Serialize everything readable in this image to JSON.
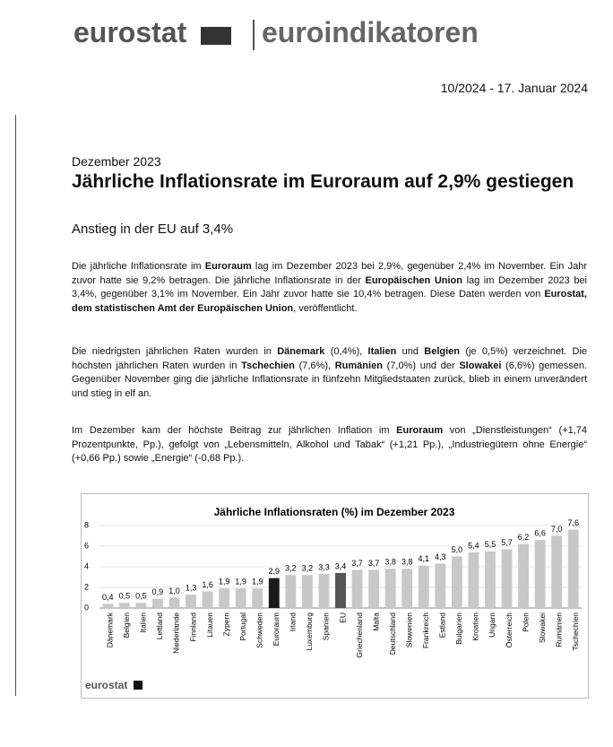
{
  "header": {
    "logo": "eurostat",
    "series": "euroindikatoren",
    "release": "10/2024 - 17. Januar 2024"
  },
  "article": {
    "kicker": "Dezember 2023",
    "title": "Jährliche Inflationsrate im Euroraum auf 2,9% gestiegen",
    "subtitle": "Anstieg in der EU auf 3,4%",
    "paragraphs": [
      {
        "runs": [
          "Die jährliche Inflationsrate im ",
          {
            "bold": "Euroraum"
          },
          " lag im Dezember 2023 bei 2,9%, gegenüber 2,4% im November. Ein Jahr zuvor hatte sie 9,2% betragen. Die jährliche Inflationsrate in der ",
          {
            "bold": "Europäischen Union"
          },
          " lag im Dezember 2023 bei 3,4%, gegenüber 3,1% im November. Ein Jahr zuvor hatte sie 10,4% betragen. Diese Daten werden von ",
          {
            "bold": "Eurostat, dem statistischen Amt der Europäischen Union"
          },
          ", veröffentlicht."
        ]
      },
      {
        "runs": [
          "Die niedrigsten jährlichen Raten wurden in ",
          {
            "bold": "Dänemark"
          },
          " (0,4%), ",
          {
            "bold": "Italien"
          },
          " und ",
          {
            "bold": "Belgien"
          },
          " (je 0,5%) verzeichnet. Die höchsten jährlichen Raten wurden in ",
          {
            "bold": "Tschechien"
          },
          " (7,6%), ",
          {
            "bold": "Rumänien"
          },
          " (7,0%) und der ",
          {
            "bold": "Slowakei"
          },
          " (6,6%) gemessen. Gegenüber November ging die jährliche Inflationsrate in fünfzehn Mitgliedstaaten zurück, blieb in einem unverändert und stieg in elf an."
        ]
      },
      {
        "runs": [
          "Im Dezember kam der höchste Beitrag zur jährlichen Inflation im ",
          {
            "bold": "Euroraum"
          },
          " von „Dienstleistungen“ (+1,74 Prozentpunkte, Pp.), gefolgt von „Lebensmitteln, Alkohol und Tabak“ (+1,21 Pp.), „Industriegütern ohne Energie“ (+0,66 Pp.) sowie „Energie“ (-0,68 Pp.)."
        ]
      }
    ]
  },
  "chart_data": {
    "type": "bar",
    "title": "Jährliche Inflationsraten (%) im Dezember 2023",
    "source": "eurostat",
    "categories": [
      "Dänemark",
      "Belgien",
      "Italien",
      "Lettland",
      "Niederlande",
      "Finnland",
      "Litauen",
      "Zypern",
      "Portugal",
      "Schweden",
      "Euroraum",
      "Irland",
      "Luxemburg",
      "Spanien",
      "EU",
      "Griechenland",
      "Malta",
      "Deutschland",
      "Slowenien",
      "Frankreich",
      "Estland",
      "Bulgarien",
      "Kroatien",
      "Ungarn",
      "Österreich",
      "Polen",
      "Slowakei",
      "Rumänien",
      "Tschechien"
    ],
    "values": [
      0.4,
      0.5,
      0.5,
      0.9,
      1.0,
      1.3,
      1.6,
      1.9,
      1.9,
      1.9,
      2.9,
      3.2,
      3.2,
      3.3,
      3.4,
      3.7,
      3.7,
      3.8,
      3.8,
      4.1,
      4.3,
      5.0,
      5.4,
      5.5,
      5.7,
      6.2,
      6.6,
      7.0,
      7.6
    ],
    "value_labels": [
      "0,4",
      "0,5",
      "0,5",
      "0,9",
      "1,0",
      "1,3",
      "1,6",
      "1,9",
      "1,9",
      "1,9",
      "2,9",
      "3,2",
      "3,2",
      "3,3",
      "3,4",
      "3,7",
      "3,7",
      "3,8",
      "3,8",
      "4,1",
      "4,3",
      "5,0",
      "5,4",
      "5,5",
      "5,7",
      "6,2",
      "6,6",
      "7,0",
      "7,6"
    ],
    "colors": [
      "#c8c8c8",
      "#c8c8c8",
      "#c8c8c8",
      "#c8c8c8",
      "#c8c8c8",
      "#c8c8c8",
      "#c8c8c8",
      "#c8c8c8",
      "#c8c8c8",
      "#c8c8c8",
      "#1a1a1a",
      "#c8c8c8",
      "#c8c8c8",
      "#c8c8c8",
      "#555555",
      "#c8c8c8",
      "#c8c8c8",
      "#c8c8c8",
      "#c8c8c8",
      "#c8c8c8",
      "#c8c8c8",
      "#c8c8c8",
      "#c8c8c8",
      "#c8c8c8",
      "#c8c8c8",
      "#c8c8c8",
      "#c8c8c8",
      "#c8c8c8",
      "#c8c8c8"
    ],
    "ylim": [
      0,
      8
    ],
    "yticks": [
      0,
      2,
      4,
      6,
      8
    ],
    "grid": true
  }
}
